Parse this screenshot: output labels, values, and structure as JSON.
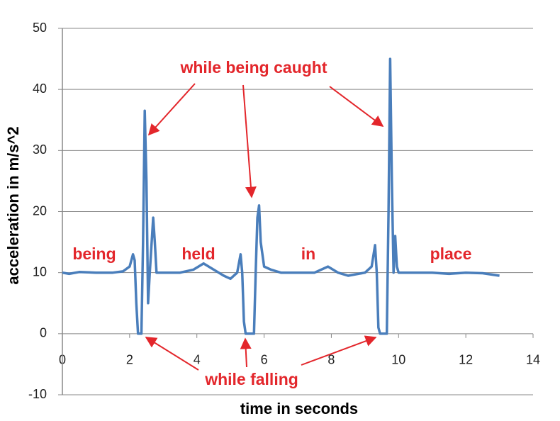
{
  "chart_data": {
    "type": "line",
    "x_label": "time in seconds",
    "y_label": "acceleration in m/s^2",
    "annotations": [
      "while being caught",
      "while falling",
      "being",
      "held",
      "in",
      "place"
    ],
    "xlim": [
      0,
      14
    ],
    "xticks": [
      0,
      2,
      4,
      6,
      8,
      10,
      12,
      14
    ],
    "ylim": [
      -10,
      50
    ],
    "yticks": [
      -10,
      0,
      10,
      20,
      30,
      40,
      50
    ],
    "grid": true,
    "series": [
      {
        "color": "#4a7ebb",
        "x": [
          0,
          0.2,
          0.5,
          1.0,
          1.5,
          1.8,
          2.0,
          2.1,
          2.15,
          2.2,
          2.25,
          2.3,
          2.35,
          2.4,
          2.45,
          2.5,
          2.55,
          2.6,
          2.7,
          2.75,
          2.8,
          3.0,
          3.5,
          3.9,
          4.2,
          4.5,
          4.8,
          5.0,
          5.2,
          5.3,
          5.35,
          5.4,
          5.45,
          5.6,
          5.7,
          5.75,
          5.8,
          5.85,
          5.9,
          6.0,
          6.2,
          6.5,
          7.0,
          7.5,
          7.9,
          8.2,
          8.5,
          9.0,
          9.2,
          9.3,
          9.35,
          9.4,
          9.45,
          9.55,
          9.65,
          9.7,
          9.75,
          9.8,
          9.85,
          9.9,
          9.95,
          10.0,
          10.5,
          11.0,
          11.5,
          12.0,
          12.5,
          13.0
        ],
        "values": [
          10,
          9.8,
          10.1,
          10,
          10,
          10.2,
          11,
          13,
          12,
          5,
          0,
          0,
          0,
          15,
          36.5,
          25,
          5,
          10,
          19,
          15,
          10,
          10,
          10,
          10.5,
          11.5,
          10.5,
          9.5,
          9,
          10,
          13,
          10,
          2,
          0,
          0,
          0,
          10,
          19,
          21,
          15,
          11,
          10.5,
          10,
          10,
          10,
          11,
          10,
          9.5,
          10,
          11,
          14.5,
          10,
          1,
          0,
          0,
          0,
          20,
          45,
          25,
          10,
          16,
          11,
          10,
          10,
          10,
          9.8,
          10,
          9.9,
          9.5
        ]
      }
    ]
  }
}
